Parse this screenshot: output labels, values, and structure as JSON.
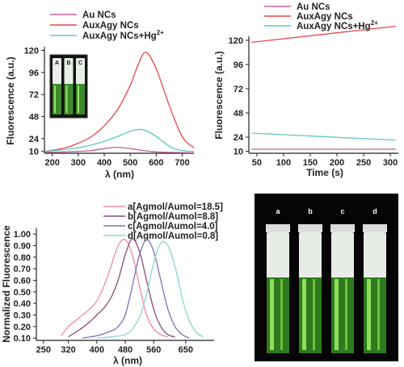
{
  "chart_data": [
    {
      "type": "line",
      "panel": "top-left",
      "xlabel": "λ (nm)",
      "ylabel": "Fluorescence (a.u.)",
      "xticks": [
        "200",
        "300",
        "400",
        "500",
        "600",
        "700"
      ],
      "yticks": [
        "10",
        "24",
        "48",
        "72",
        "96",
        "120"
      ],
      "xlim": [
        170,
        745
      ],
      "ylim": [
        8,
        124
      ],
      "legend_position": "top-left",
      "series": [
        {
          "name": "Au NCs",
          "color": "#c0609a",
          "x": [
            170,
            250,
            300,
            350,
            400,
            450,
            500,
            550,
            600,
            650,
            700,
            745
          ],
          "y": [
            9,
            9.5,
            10,
            11,
            13,
            14.5,
            13,
            11,
            9.5,
            9,
            8.7,
            8.5
          ]
        },
        {
          "name": "AuxAgy NCs",
          "color": "#e8474c",
          "x": [
            170,
            250,
            300,
            350,
            400,
            450,
            500,
            530,
            560,
            600,
            650,
            700,
            745
          ],
          "y": [
            10,
            14,
            19,
            26,
            38,
            55,
            82,
            104,
            118,
            100,
            60,
            26,
            14
          ]
        },
        {
          "name": "AuxAgy NCs+Hg2+",
          "color": "#5dc7c2",
          "x": [
            170,
            250,
            300,
            350,
            400,
            450,
            500,
            540,
            580,
            620,
            660,
            700,
            745
          ],
          "y": [
            10,
            12,
            14,
            17,
            21,
            26,
            32,
            34,
            30,
            22,
            14,
            11,
            10
          ]
        }
      ],
      "inset_labels": [
        "A",
        "B",
        "C"
      ]
    },
    {
      "type": "line",
      "panel": "top-right",
      "xlabel": "Time (s)",
      "ylabel": "Fluorescence (a.u.)",
      "xticks": [
        "50",
        "100",
        "150",
        "200",
        "250",
        "300"
      ],
      "yticks": [
        "10",
        "24",
        "48",
        "72",
        "96",
        "120"
      ],
      "xlim": [
        35,
        315
      ],
      "ylim": [
        8,
        124
      ],
      "legend_position": "top-left",
      "series": [
        {
          "name": "Au NCs",
          "color": "#c0609a",
          "x": [
            40,
            310
          ],
          "y": [
            12,
            12
          ]
        },
        {
          "name": "AuxAgy NCs",
          "color": "#e8474c",
          "x": [
            40,
            310
          ],
          "y": [
            118,
            134
          ]
        },
        {
          "name": "AuxAgy NCs+Hg2+",
          "color": "#5dc7c2",
          "x": [
            40,
            310
          ],
          "y": [
            28,
            21
          ]
        }
      ]
    },
    {
      "type": "line",
      "panel": "bottom-left",
      "xlabel": "λ (nm)",
      "ylabel": "Normalized Fluorescence",
      "xticks": [
        "250",
        "320",
        "400",
        "480",
        "560",
        "650"
      ],
      "yticks": [
        "0.10",
        "0.20",
        "0.30",
        "0.40",
        "0.50",
        "0.60",
        "0.70",
        "0.80",
        "0.90",
        "1.00"
      ],
      "xlim": [
        230,
        730
      ],
      "ylim": [
        0.08,
        1.05
      ],
      "legend_position": "top",
      "series": [
        {
          "name": "a[Agmol/Aumol=18.5]",
          "color": "#ef8aa0",
          "x": [
            300,
            320,
            340,
            360,
            380,
            400,
            420,
            440,
            460,
            480,
            500,
            520,
            540,
            560,
            580,
            600
          ],
          "y": [
            0.12,
            0.2,
            0.25,
            0.3,
            0.35,
            0.42,
            0.55,
            0.72,
            0.9,
            0.95,
            0.82,
            0.55,
            0.3,
            0.18,
            0.13,
            0.11
          ]
        },
        {
          "name": "b[Agmol/Aumol=8.8]",
          "color": "#8c4a7a",
          "x": [
            320,
            340,
            360,
            380,
            400,
            420,
            440,
            460,
            480,
            500,
            520,
            540,
            560,
            580,
            600,
            620
          ],
          "y": [
            0.11,
            0.15,
            0.19,
            0.24,
            0.3,
            0.36,
            0.45,
            0.6,
            0.82,
            0.96,
            0.85,
            0.6,
            0.35,
            0.2,
            0.13,
            0.11
          ]
        },
        {
          "name": "c[Agmol/Aumol=4.0]",
          "color": "#7c6fbd",
          "x": [
            360,
            400,
            440,
            460,
            480,
            500,
            520,
            540,
            560,
            580,
            600,
            620,
            640,
            660
          ],
          "y": [
            0.1,
            0.12,
            0.16,
            0.2,
            0.3,
            0.55,
            0.82,
            0.95,
            0.85,
            0.6,
            0.35,
            0.2,
            0.13,
            0.1
          ]
        },
        {
          "name": "d[Agmol/Aumol=0.8]",
          "color": "#85d8d0",
          "x": [
            400,
            440,
            480,
            500,
            520,
            540,
            560,
            580,
            600,
            620,
            640,
            660,
            680,
            700
          ],
          "y": [
            0.1,
            0.11,
            0.13,
            0.18,
            0.28,
            0.48,
            0.75,
            0.92,
            0.9,
            0.72,
            0.45,
            0.25,
            0.15,
            0.11
          ]
        }
      ]
    }
  ],
  "photo": {
    "labels": [
      "a",
      "b",
      "c",
      "d"
    ]
  },
  "legend_text": {
    "top_left": [
      "Au NCs",
      "AuxAgy NCs",
      "AuxAgy NCs+Hg",
      "2+"
    ],
    "top_right": [
      "Au NCs",
      "AuxAgy NCs",
      "AuxAgy NCs+Hg",
      "2+"
    ]
  }
}
